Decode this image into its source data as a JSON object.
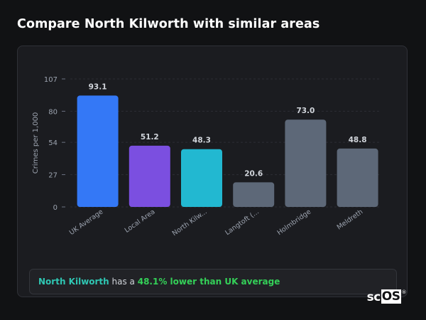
{
  "header": {
    "title": "Compare North Kilworth with similar areas"
  },
  "chart_data": {
    "type": "bar",
    "title": "",
    "xlabel": "",
    "ylabel": "Crimes per 1,000",
    "ylim": [
      0,
      107
    ],
    "yticks": [
      0,
      27,
      54,
      80,
      107
    ],
    "grid": true,
    "categories": [
      "UK Average",
      "Local Area",
      "North Kilw...",
      "Langtoft (...",
      "Holmbridge",
      "Meldreth"
    ],
    "values": [
      93.1,
      51.2,
      48.3,
      20.6,
      73.0,
      48.8
    ],
    "value_labels": [
      "93.1",
      "51.2",
      "48.3",
      "20.6",
      "73.0",
      "48.8"
    ],
    "colors": [
      "#3478f6",
      "#7b4fe0",
      "#22b8d1",
      "#5d6878",
      "#5d6878",
      "#5d6878"
    ]
  },
  "summary": {
    "area": "North Kilworth",
    "middle": " has a ",
    "difference": "48.1% lower than UK average"
  },
  "brand": {
    "sc": "sc",
    "os": "OS",
    "reg": "®"
  }
}
